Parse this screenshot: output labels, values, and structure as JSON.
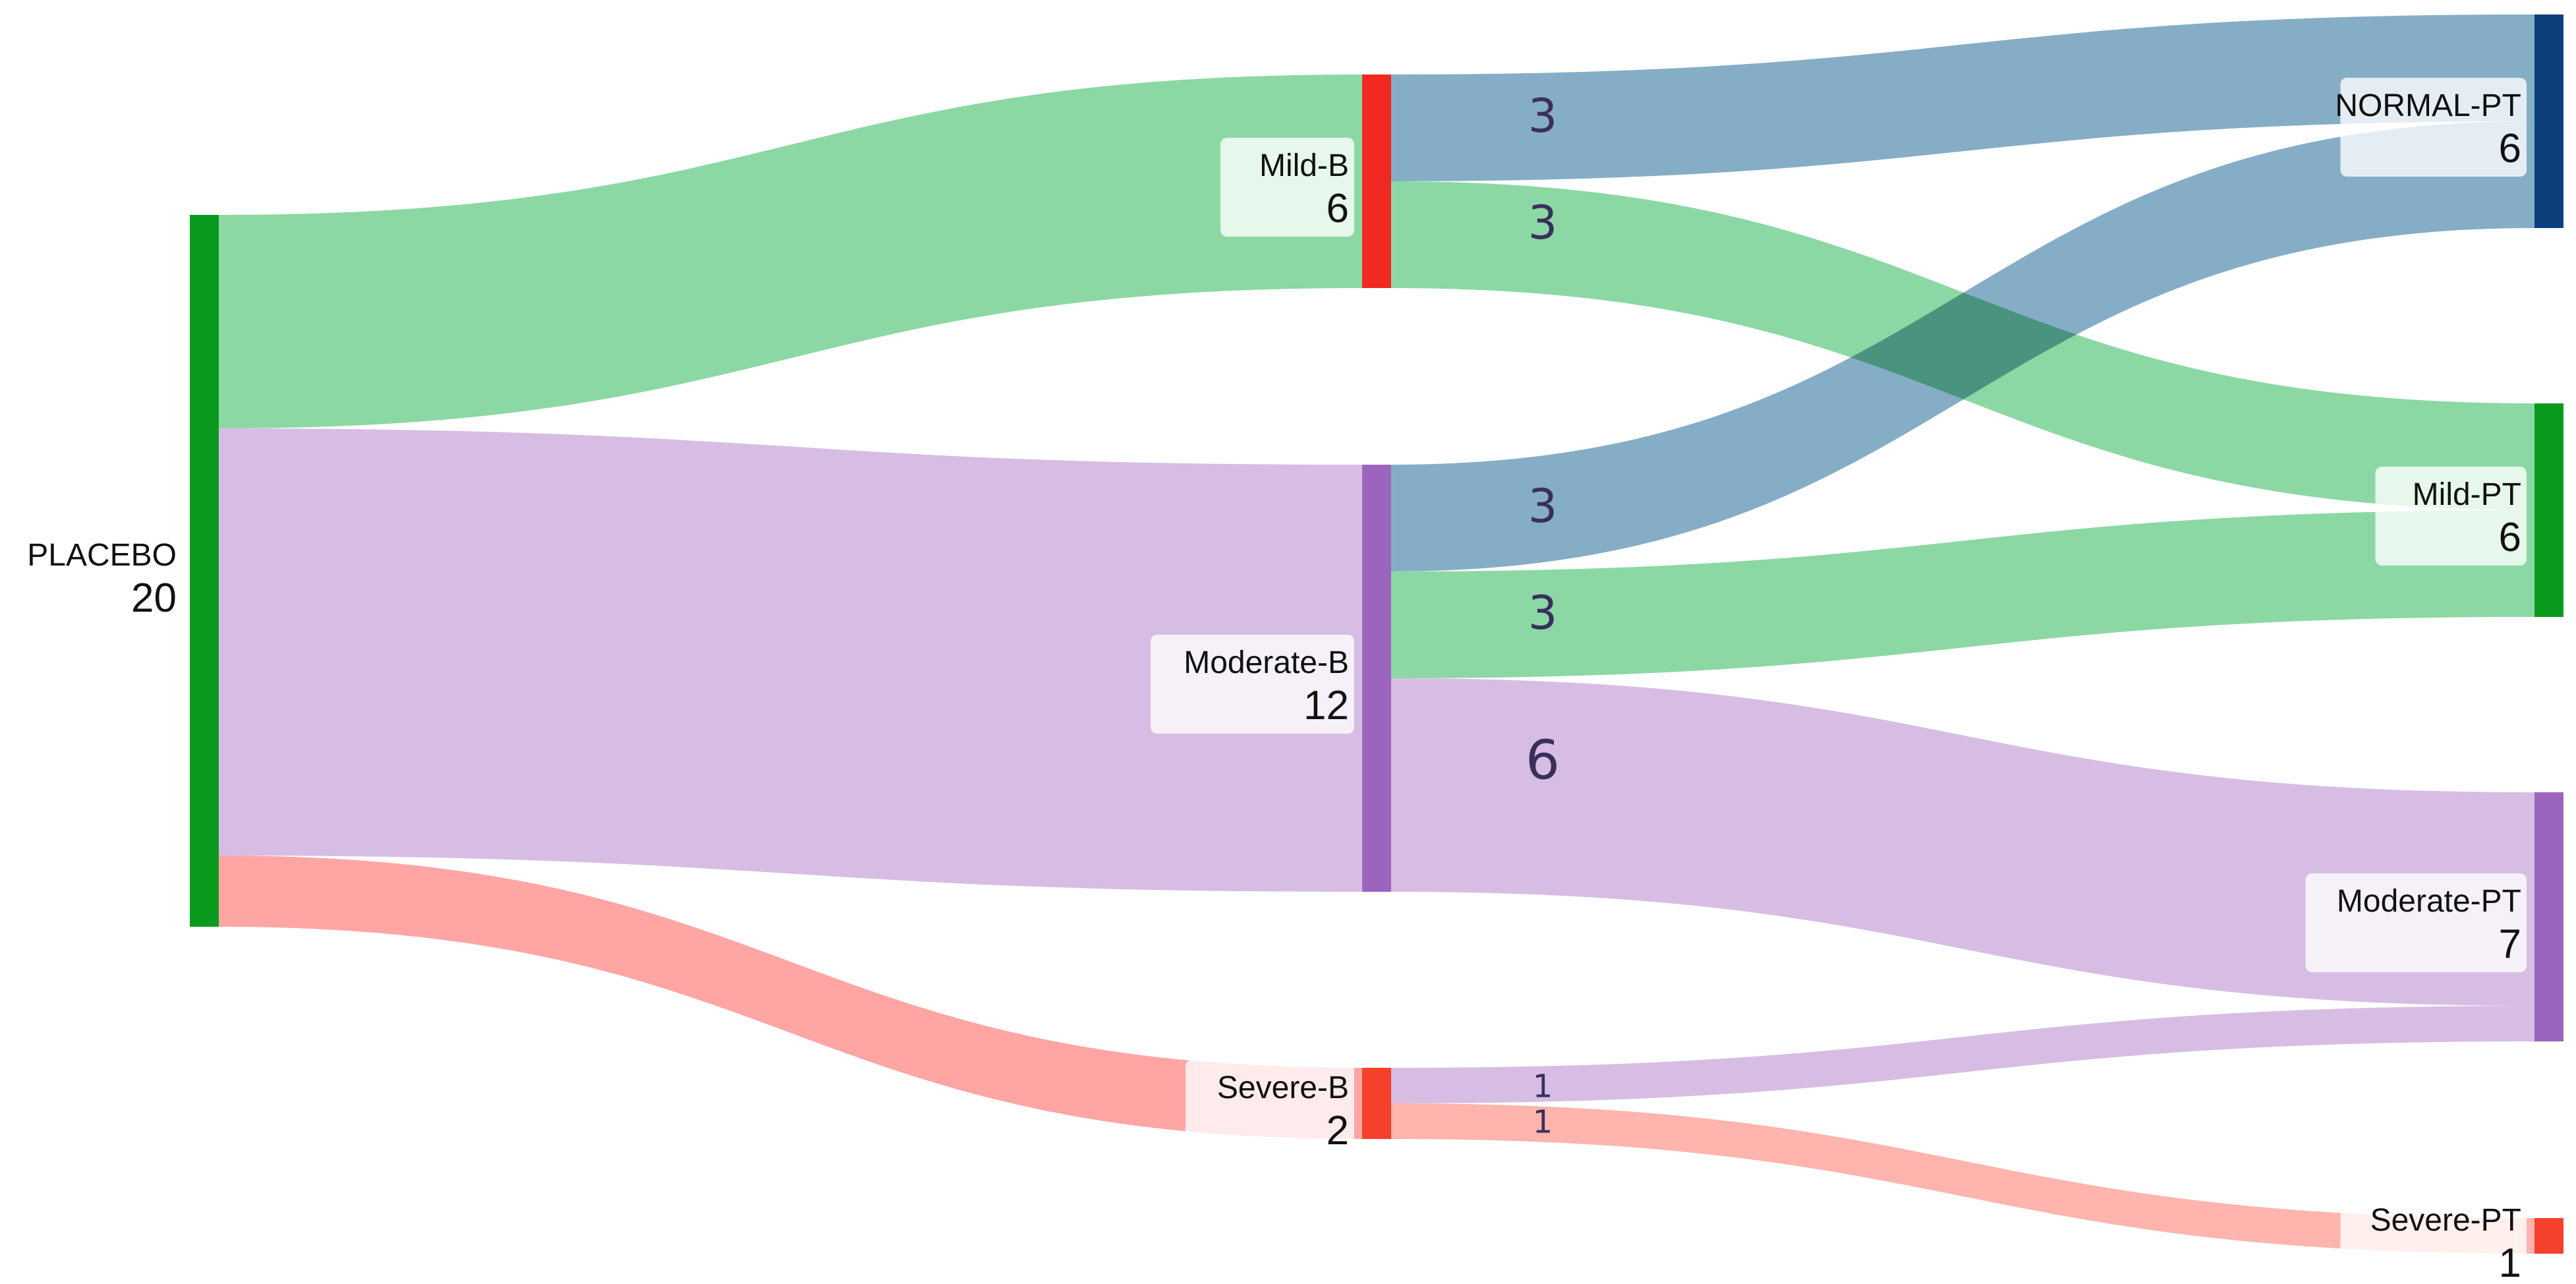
{
  "chart_data": {
    "type": "sankey",
    "title": "",
    "unit": "patients",
    "nodes": [
      {
        "id": "PLACEBO",
        "label": "PLACEBO",
        "value": 20,
        "color": "#0a9a1e"
      },
      {
        "id": "Mild-B",
        "label": "Mild-B",
        "value": 6,
        "color": "#f02a23"
      },
      {
        "id": "Moderate-B",
        "label": "Moderate-B",
        "value": 12,
        "color": "#9b65be"
      },
      {
        "id": "Severe-B",
        "label": "Severe-B",
        "value": 2,
        "color": "#f5402b"
      },
      {
        "id": "NORMAL-PT",
        "label": "NORMAL-PT",
        "value": 6,
        "color": "#0c3f7c"
      },
      {
        "id": "Mild-PT",
        "label": "Mild-PT",
        "value": 6,
        "color": "#0a9a1e"
      },
      {
        "id": "Moderate-PT",
        "label": "Moderate-PT",
        "value": 7,
        "color": "#9b65be"
      },
      {
        "id": "Severe-PT",
        "label": "Severe-PT",
        "value": 1,
        "color": "#f5402b"
      }
    ],
    "links": [
      {
        "source": "PLACEBO",
        "target": "Mild-B",
        "value": 6,
        "color": "#87d6a0"
      },
      {
        "source": "PLACEBO",
        "target": "Moderate-B",
        "value": 12,
        "color": "#d5bae2"
      },
      {
        "source": "PLACEBO",
        "target": "Severe-B",
        "value": 2,
        "color": "#ffa2a1"
      },
      {
        "source": "Mild-B",
        "target": "NORMAL-PT",
        "value": 3,
        "color": "#80abc4",
        "label": "3"
      },
      {
        "source": "Mild-B",
        "target": "Mild-PT",
        "value": 3,
        "color": "#87d6a0",
        "label": "3"
      },
      {
        "source": "Moderate-B",
        "target": "NORMAL-PT",
        "value": 3,
        "color": "#80abc4",
        "label": "3"
      },
      {
        "source": "Moderate-B",
        "target": "Mild-PT",
        "value": 3,
        "color": "#87d6a0",
        "label": "3"
      },
      {
        "source": "Moderate-B",
        "target": "Moderate-PT",
        "value": 6,
        "color": "#d5bae2",
        "label": "6"
      },
      {
        "source": "Severe-B",
        "target": "Moderate-PT",
        "value": 1,
        "color": "#d5bae2",
        "label": "1"
      },
      {
        "source": "Severe-B",
        "target": "Severe-PT",
        "value": 1,
        "color": "#ffb1aa",
        "label": "1"
      }
    ]
  }
}
